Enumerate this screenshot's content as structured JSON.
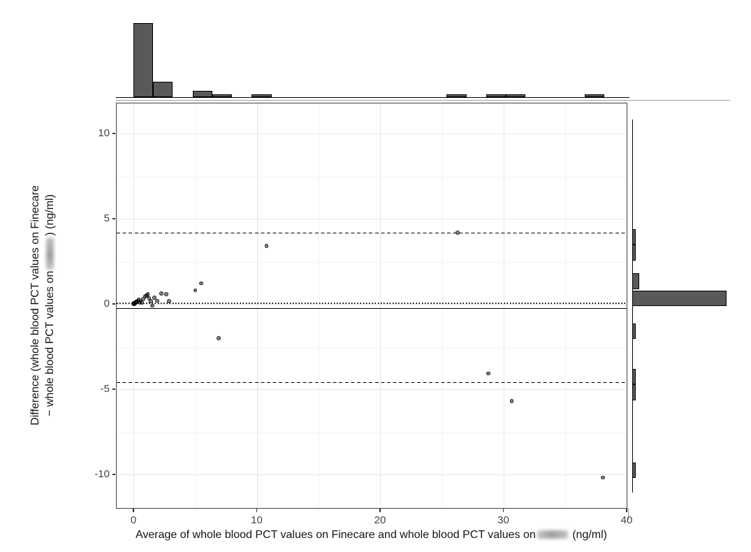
{
  "figure": {
    "x_axis": {
      "title_prefix": "Average of whole blood PCT values on Finecare and whole blood PCT values on",
      "title_redacted": "[redacted]",
      "title_suffix": " (ng/ml)"
    },
    "y_axis": {
      "title_line1": "Difference (whole blood PCT values on Finecare",
      "title_line2_prefix": "− whole blood PCT values on",
      "title_line2_redacted": "[redacted]",
      "title_line2_suffix": ") (ng/ml)"
    }
  },
  "chart_data": {
    "type": "scatter",
    "subtype": "bland_altman_with_marginal_histograms",
    "title": "",
    "xlabel": "Average of whole blood PCT values on Finecare and whole blood PCT values on [redacted] (ng/ml)",
    "ylabel": "Difference (whole blood PCT values on Finecare − whole blood PCT values on [redacted]) (ng/ml)",
    "xlim": [
      -1.44,
      40.15
    ],
    "ylim": [
      -11.99,
      11.83
    ],
    "x_ticks": [
      0,
      10,
      20,
      30,
      40
    ],
    "y_ticks": [
      10,
      5,
      0,
      -5,
      -10
    ],
    "x_minor_gridlines": [
      5,
      15,
      25,
      35
    ],
    "y_minor_gridlines": [
      7.5,
      2.5,
      -2.5,
      -7.5
    ],
    "grid": true,
    "legend": "none",
    "points": [
      [
        0.03,
        0.0
      ],
      [
        0.04,
        0.02
      ],
      [
        0.05,
        -0.02
      ],
      [
        0.06,
        0.01
      ],
      [
        0.07,
        0.03
      ],
      [
        0.08,
        -0.01
      ],
      [
        0.1,
        0.02
      ],
      [
        0.12,
        0.05
      ],
      [
        0.15,
        0.03
      ],
      [
        0.18,
        0.07
      ],
      [
        0.22,
        0.1
      ],
      [
        0.28,
        0.12
      ],
      [
        0.35,
        0.15
      ],
      [
        0.45,
        0.24
      ],
      [
        0.55,
        0.06
      ],
      [
        0.62,
        0.18
      ],
      [
        0.72,
        0.05
      ],
      [
        0.8,
        0.28
      ],
      [
        0.98,
        0.44
      ],
      [
        1.08,
        0.47
      ],
      [
        1.17,
        0.57
      ],
      [
        1.3,
        0.32
      ],
      [
        1.42,
        0.15
      ],
      [
        1.55,
        -0.12
      ],
      [
        1.72,
        0.35
      ],
      [
        1.95,
        0.18
      ],
      [
        2.3,
        0.6
      ],
      [
        2.68,
        0.55
      ],
      [
        2.9,
        0.16
      ],
      [
        5.04,
        0.78
      ],
      [
        5.51,
        1.19
      ],
      [
        6.93,
        -2.02
      ],
      [
        10.8,
        3.4
      ],
      [
        26.3,
        4.17
      ],
      [
        28.8,
        -4.09
      ],
      [
        30.7,
        -5.7
      ],
      [
        38.1,
        -10.19
      ]
    ],
    "reference_lines": {
      "zero_dotted": 0,
      "mean_difference_solid": -0.23,
      "upper_loa_dashed": 4.2,
      "lower_loa_dashed": -4.57
    },
    "top_histogram": {
      "type": "bar",
      "orientation": "vertical",
      "variable": "average",
      "bins": [
        {
          "from": 0.0,
          "to": 1.6,
          "count": 24
        },
        {
          "from": 1.6,
          "to": 3.2,
          "count": 5
        },
        {
          "from": 4.8,
          "to": 6.4,
          "count": 2
        },
        {
          "from": 6.4,
          "to": 8.0,
          "count": 1
        },
        {
          "from": 9.6,
          "to": 11.2,
          "count": 1
        },
        {
          "from": 25.4,
          "to": 27.0,
          "count": 1
        },
        {
          "from": 28.6,
          "to": 30.2,
          "count": 1
        },
        {
          "from": 30.2,
          "to": 31.8,
          "count": 1
        },
        {
          "from": 36.6,
          "to": 38.2,
          "count": 1
        }
      ]
    },
    "right_histogram": {
      "type": "bar",
      "orientation": "horizontal",
      "variable": "difference",
      "bins": [
        {
          "from": 3.47,
          "to": 4.39,
          "count": 1
        },
        {
          "from": 2.55,
          "to": 3.47,
          "count": 1
        },
        {
          "from": 0.87,
          "to": 1.79,
          "count": 2
        },
        {
          "from": -0.13,
          "to": 0.79,
          "count": 28
        },
        {
          "from": -2.05,
          "to": -1.13,
          "count": 1
        },
        {
          "from": -4.73,
          "to": -3.81,
          "count": 1
        },
        {
          "from": -5.65,
          "to": -4.73,
          "count": 1
        },
        {
          "from": -10.21,
          "to": -9.29,
          "count": 1
        }
      ]
    },
    "colors": {
      "point_fill": "#4a4a4a",
      "histogram_fill": "#595959",
      "histogram_border": "#000000",
      "grid_major": "#e7e7e7",
      "grid_minor": "#f3f3f3",
      "panel_border": "#3f3f3f",
      "tick_text": "#434343",
      "reference_line": "#000000",
      "background": "#ffffff"
    }
  }
}
